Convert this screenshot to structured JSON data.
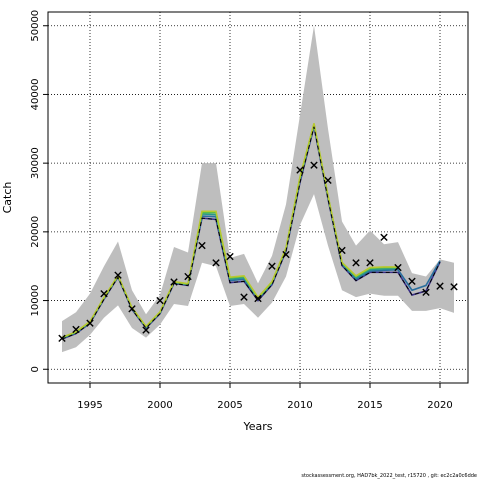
{
  "chart_data": {
    "type": "line",
    "title": "",
    "xlabel": "Years",
    "ylabel": "Catch",
    "xlim": [
      1992,
      2022
    ],
    "ylim": [
      -2000,
      52000
    ],
    "grid": true,
    "x_ticks": [
      1995,
      2000,
      2005,
      2010,
      2015,
      2020
    ],
    "y_ticks": [
      0,
      10000,
      20000,
      30000,
      40000,
      50000
    ],
    "band": {
      "x": [
        1993,
        1994,
        1995,
        1996,
        1997,
        1998,
        1999,
        2000,
        2001,
        2002,
        2003,
        2004,
        2005,
        2006,
        2007,
        2008,
        2009,
        2010,
        2011,
        2012,
        2013,
        2014,
        2015,
        2016,
        2017,
        2018,
        2019,
        2020,
        2021
      ],
      "upper": [
        7000,
        8300,
        11000,
        15000,
        18600,
        11500,
        8000,
        10800,
        17800,
        17000,
        30000,
        30000,
        16200,
        16800,
        12500,
        16500,
        24000,
        37000,
        50000,
        35000,
        21500,
        18000,
        20200,
        18200,
        18500,
        14000,
        13500,
        16000,
        15500
      ],
      "lower": [
        2500,
        3200,
        5000,
        7500,
        9300,
        6000,
        4600,
        6500,
        9500,
        9200,
        15500,
        15000,
        9200,
        9500,
        7500,
        9700,
        13500,
        21000,
        25500,
        18000,
        11500,
        10500,
        11000,
        10700,
        10700,
        8500,
        8500,
        8900,
        8200
      ]
    },
    "series": [
      {
        "color": "#3a2f8a",
        "values": [
          4400,
          5200,
          6700,
          10200,
          13400,
          8700,
          6000,
          8100,
          12500,
          12200,
          22000,
          21800,
          12600,
          12800,
          10000,
          12300,
          17200,
          27200,
          35300,
          24800,
          15100,
          12900,
          14100,
          14100,
          14100,
          10800,
          11400,
          15600,
          null
        ]
      },
      {
        "color": "#2a6f9e",
        "values": [
          4500,
          5300,
          6800,
          10300,
          13500,
          8800,
          6100,
          8200,
          12600,
          12300,
          22300,
          22200,
          12900,
          13100,
          10200,
          12500,
          17400,
          27500,
          35500,
          25000,
          15300,
          13100,
          14300,
          14400,
          14500,
          11500,
          12200,
          15800,
          null
        ]
      },
      {
        "color": "#2a9a8a",
        "values": [
          4550,
          5350,
          6850,
          10350,
          13550,
          8850,
          6150,
          8250,
          12650,
          12350,
          22600,
          22500,
          13100,
          13300,
          10300,
          12600,
          17500,
          27700,
          35600,
          25100,
          15400,
          13300,
          14500,
          14600,
          14700,
          null,
          null,
          null,
          null
        ]
      },
      {
        "color": "#5cbf45",
        "values": [
          4600,
          5400,
          6900,
          10400,
          13600,
          8900,
          6200,
          8300,
          12700,
          12400,
          22800,
          22800,
          13300,
          13500,
          10400,
          12700,
          17600,
          27900,
          35700,
          25200,
          15500,
          13500,
          14700,
          14800,
          14800,
          null,
          null,
          null,
          null
        ]
      },
      {
        "color": "#b8c92e",
        "values": [
          4650,
          5450,
          6950,
          10450,
          13650,
          8950,
          6250,
          8350,
          12750,
          12450,
          23000,
          23000,
          13400,
          13600,
          10450,
          12750,
          17650,
          28000,
          35800,
          25250,
          15550,
          13600,
          14800,
          14900,
          14900,
          null,
          null,
          null,
          null
        ]
      }
    ],
    "observed": {
      "x": [
        1993,
        1994,
        1995,
        1996,
        1997,
        1998,
        1999,
        2000,
        2001,
        2002,
        2003,
        2004,
        2005,
        2006,
        2007,
        2008,
        2009,
        2010,
        2011,
        2012,
        2013,
        2014,
        2015,
        2016,
        2017,
        2018,
        2019,
        2020,
        2021
      ],
      "y": [
        4500,
        5800,
        6700,
        11000,
        13700,
        8800,
        5700,
        10000,
        12700,
        13500,
        18000,
        15500,
        16400,
        10500,
        10300,
        15000,
        16700,
        29000,
        29700,
        27500,
        17300,
        15500,
        15500,
        19200,
        14800,
        12800,
        11200,
        12100,
        12000
      ]
    }
  },
  "footer": "stockassessment.org, HAD7bk_2022_test, r15720 , git: ec2c2a0c6dde"
}
